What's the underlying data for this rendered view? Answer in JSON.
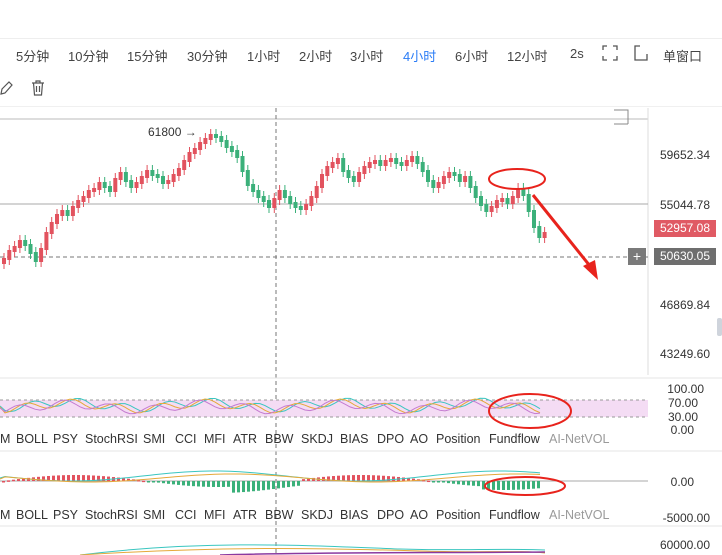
{
  "timeframes": [
    "5分钟",
    "10分钟",
    "15分钟",
    "30分钟",
    "1小时",
    "2小时",
    "3小时",
    "4小时",
    "6小时",
    "12小时",
    "2s"
  ],
  "active_timeframe": "4小时",
  "toolbar": {
    "window_label": "单窗口",
    "fullscreen_icon": "fullscreen-icon",
    "window_icon": "window-icon",
    "draw_icon": "draw-icon",
    "delete_icon": "trash-icon"
  },
  "price_axis": {
    "labels": [
      "59652.34",
      "55044.78",
      "46869.84",
      "43249.60"
    ],
    "last_price": "52957.08",
    "crosshair_price": "50630.05",
    "last_price_color": "#e05a64",
    "crosshair_color": "#6e6e6e"
  },
  "annotation": {
    "high_label": "61800 →"
  },
  "indicator1": {
    "axis": [
      "100.00",
      "70.00",
      "30.00",
      "0.00"
    ]
  },
  "indicator2": {
    "axis": [
      "0.00",
      "-5000.00"
    ]
  },
  "indicator3": {
    "axis": [
      "60000.00"
    ]
  },
  "indicator_tabs": [
    "M",
    "BOLL",
    "PSY",
    "StochRSI",
    "SMI",
    "CCI",
    "MFI",
    "ATR",
    "BBW",
    "SKDJ",
    "BIAS",
    "DPO",
    "AO",
    "Position",
    "Fundflow",
    "AI-NetVOL"
  ],
  "colors": {
    "up": "#e2525e",
    "down": "#3bb07a",
    "accent": "#2a7cf6",
    "annotation": "#e8231c"
  }
}
